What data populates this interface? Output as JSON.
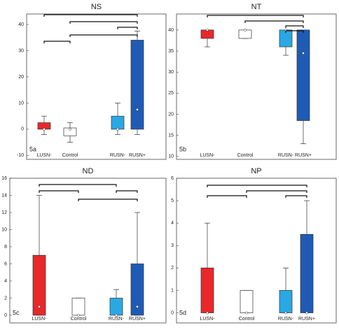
{
  "chart_data": [
    {
      "type": "box",
      "title": "NS",
      "label": "5a",
      "categories": [
        "LUSN-",
        "Control",
        "RUSN-",
        "RUSN+"
      ],
      "colors": [
        "#e8282b",
        "#ffffff",
        "#2aa8e4",
        "#1f5bb5"
      ],
      "boxes": [
        {
          "min": -2,
          "q1": 0,
          "q3": 2.5,
          "max": 5,
          "mean": 0
        },
        {
          "min": -5,
          "q1": -2.5,
          "q3": 0.5,
          "max": 2.5,
          "mean": 0
        },
        {
          "min": -2,
          "q1": 0,
          "q3": 5,
          "max": 10,
          "mean": 0
        },
        {
          "min": -2,
          "q1": 0,
          "q3": 34,
          "max": 37.5,
          "mean": 7.5
        }
      ],
      "ylim": [
        -11.5,
        44
      ],
      "yticks": [
        -10,
        0,
        10,
        20,
        30,
        40
      ]
    },
    {
      "type": "box",
      "title": "NT",
      "label": "5b",
      "categories": [
        "LUSN-",
        "Control",
        "RUSN-",
        "RUSN+"
      ],
      "colors": [
        "#e8282b",
        "#ffffff",
        "#2aa8e4",
        "#1f5bb5"
      ],
      "boxes": [
        {
          "min": 36,
          "q1": 38,
          "q3": 40,
          "max": 40,
          "mean": 40
        },
        {
          "min": 38,
          "q1": 38,
          "q3": 40,
          "max": 40,
          "mean": 40
        },
        {
          "min": 34,
          "q1": 36,
          "q3": 40,
          "max": 40,
          "mean": 40
        },
        {
          "min": 13,
          "q1": 18.5,
          "q3": 40,
          "max": 40,
          "mean": 34.5
        }
      ],
      "ylim": [
        9.3,
        43.8
      ],
      "yticks": [
        10,
        15,
        20,
        25,
        30,
        35,
        40
      ]
    },
    {
      "type": "box",
      "title": "ND",
      "label": "5c",
      "categories": [
        "LUSN-",
        "Control",
        "RUSN-",
        "RUSN+"
      ],
      "colors": [
        "#e8282b",
        "#ffffff",
        "#2aa8e4",
        "#1f5bb5"
      ],
      "boxes": [
        {
          "min": 0,
          "q1": 0,
          "q3": 7,
          "max": 14,
          "mean": 1
        },
        {
          "min": 0,
          "q1": 0,
          "q3": 2,
          "max": 2,
          "mean": 0
        },
        {
          "min": 0,
          "q1": 0,
          "q3": 2,
          "max": 3,
          "mean": 0
        },
        {
          "min": 0,
          "q1": 0,
          "q3": 6,
          "max": 12,
          "mean": 1
        }
      ],
      "ylim": [
        -0.9,
        16
      ],
      "yticks": [
        0,
        2,
        4,
        6,
        8,
        10,
        12,
        14,
        16
      ]
    },
    {
      "type": "box",
      "title": "NP",
      "label": "5d",
      "categories": [
        "LUSN-",
        "Control",
        "RUSN-",
        "RUSN+"
      ],
      "colors": [
        "#e8282b",
        "#ffffff",
        "#2aa8e4",
        "#1f5bb5"
      ],
      "boxes": [
        {
          "min": 0,
          "q1": 0,
          "q3": 2,
          "max": 4,
          "mean": 0
        },
        {
          "min": 0,
          "q1": 0,
          "q3": 1,
          "max": 1,
          "mean": 0
        },
        {
          "min": 0,
          "q1": 0,
          "q3": 1,
          "max": 2,
          "mean": 0
        },
        {
          "min": 0,
          "q1": 0,
          "q3": 3.5,
          "max": 5,
          "mean": 0
        }
      ],
      "ylim": [
        -0.45,
        6
      ],
      "yticks": [
        0,
        1,
        2,
        3,
        4,
        5,
        6
      ]
    }
  ]
}
